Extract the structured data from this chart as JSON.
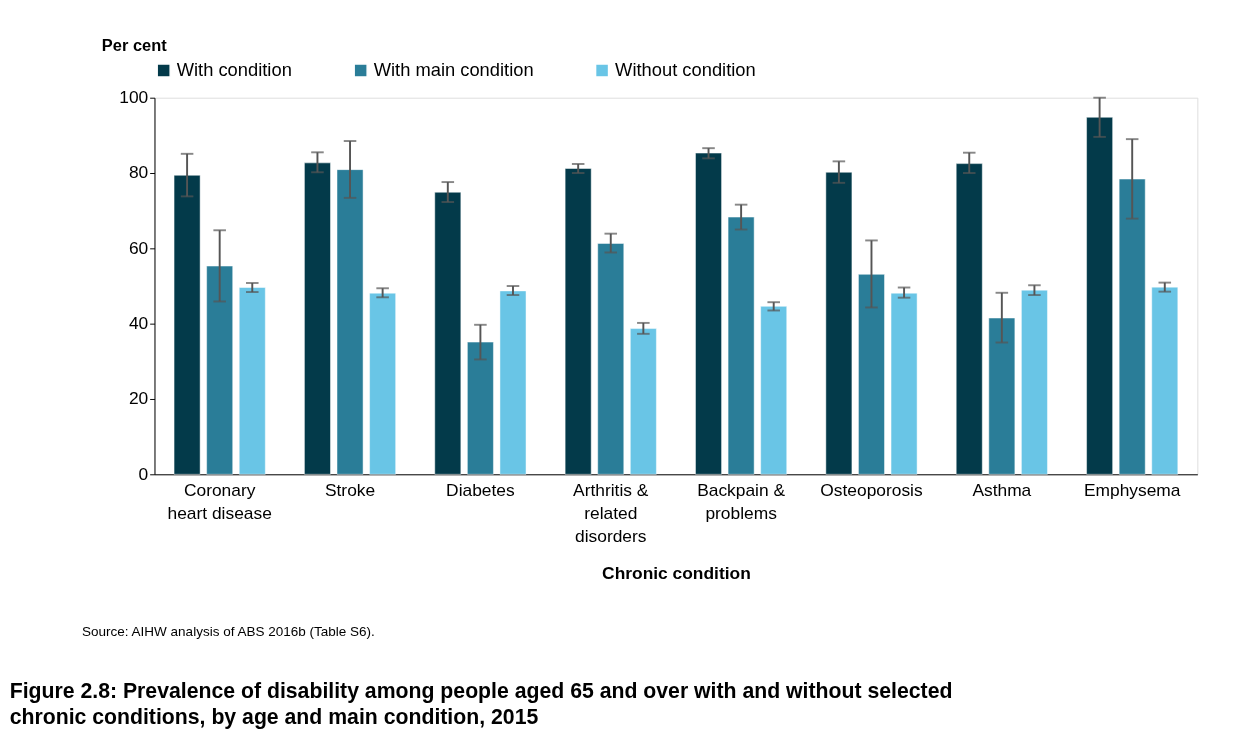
{
  "chart_data": {
    "type": "bar",
    "title": "Figure 2.8: Prevalence of disability among people aged 65 and over with and without selected chronic conditions, by age and main condition, 2015",
    "xlabel": "Chronic condition",
    "ylabel": "Per cent",
    "categories": [
      "Coronary heart disease",
      "Stroke",
      "Diabetes",
      "Arthritis & related disorders",
      "Backpain & problems",
      "Osteoporosis",
      "Asthma",
      "Emphysema"
    ],
    "series": [
      {
        "name": "With condition",
        "color": "#033a4a",
        "values": [
          79.4,
          82.7,
          74.9,
          81.2,
          85.3,
          80.2,
          82.5,
          94.8
        ],
        "errors": [
          [
            73.8,
            85.1
          ],
          [
            80.2,
            85.5
          ],
          [
            72.3,
            77.6
          ],
          [
            80.0,
            82.4
          ],
          [
            83.9,
            86.6
          ],
          [
            77.4,
            83.1
          ],
          [
            80.0,
            85.4
          ],
          [
            89.6,
            100.0
          ]
        ]
      },
      {
        "name": "With main condition",
        "color": "#2a7d98",
        "values": [
          55.3,
          80.9,
          35.1,
          61.3,
          68.3,
          53.1,
          41.5,
          78.4
        ],
        "errors": [
          [
            45.9,
            64.8
          ],
          [
            73.4,
            88.5
          ],
          [
            30.5,
            39.7
          ],
          [
            58.9,
            63.9
          ],
          [
            65.0,
            71.6
          ],
          [
            44.3,
            62.1
          ],
          [
            35.0,
            48.2
          ],
          [
            67.9,
            89.0
          ]
        ]
      },
      {
        "name": "Without condition",
        "color": "#69c5e6",
        "values": [
          49.6,
          48.1,
          48.7,
          38.7,
          44.6,
          48.1,
          48.9,
          49.7
        ],
        "errors": [
          [
            48.4,
            50.8
          ],
          [
            47.0,
            49.4
          ],
          [
            47.6,
            50.0
          ],
          [
            37.3,
            40.2
          ],
          [
            43.5,
            45.7
          ],
          [
            46.9,
            49.6
          ],
          [
            47.6,
            50.2
          ],
          [
            48.5,
            50.9
          ]
        ]
      }
    ],
    "ylim": [
      0,
      100
    ],
    "yticks": [
      0,
      20,
      40,
      60,
      80,
      100
    ],
    "grid": false,
    "legend": "top",
    "annotations": [
      "Source: AIHW analysis of ABS 2016b (Table S6)."
    ]
  }
}
